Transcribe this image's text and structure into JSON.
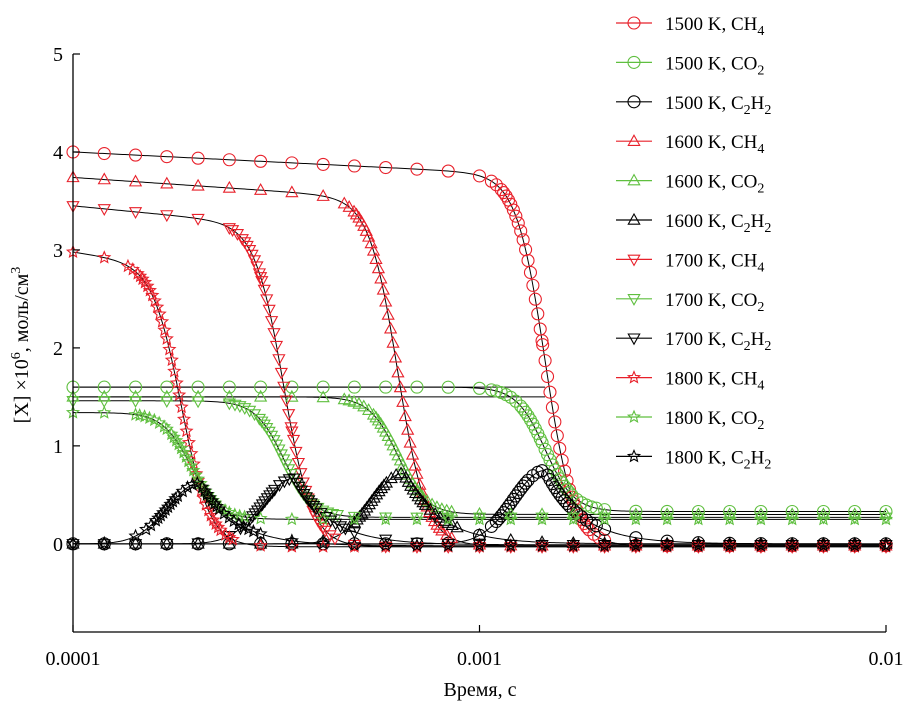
{
  "chart_data": {
    "type": "line",
    "title": "",
    "xlabel": "Время, с",
    "ylabel": "[X] ×10^6, моль/см^3",
    "xscale": "log",
    "xlim": [
      0.0001,
      0.01
    ],
    "ylim": [
      -0.9,
      5
    ],
    "grid": false,
    "legend_position": "top-right",
    "x_ticks": [
      0.0001,
      0.001,
      0.01
    ],
    "x_tick_labels": [
      "0.0001",
      "0.001",
      "0.01"
    ],
    "y_ticks": [
      0,
      1,
      2,
      3,
      4,
      5
    ],
    "y_tick_labels": [
      "0",
      "1",
      "2",
      "3",
      "4",
      "5"
    ],
    "colors": {
      "1500": "#e8202a",
      "co2": "#5fbf3f",
      "c2h2": "#000000"
    },
    "series": [
      {
        "name": "1500 K, CH4",
        "name_base": "1500 K, CH",
        "name_sub": "4",
        "color": "#e8202a",
        "marker": "circle",
        "fall_time": 0.00145,
        "y_start": 4.0,
        "y_end": -0.02
      },
      {
        "name": "1500 K, CO2",
        "name_base": "1500 K, CO",
        "name_sub": "2",
        "color": "#5fbf3f",
        "marker": "circle",
        "fall_time": 0.00145,
        "y_start": 1.6,
        "y_end": 0.33
      },
      {
        "name": "1500 K, C2H2",
        "name_base": "1500 K, C",
        "name_sub": "2",
        "name_mid": "H",
        "name_sub2": "2",
        "color": "#000000",
        "marker": "circle",
        "peak_time": 0.00145,
        "y_start": 1.58,
        "y_peak": 0.75,
        "y_end": 0.0
      },
      {
        "name": "1600 K, CH4",
        "name_base": "1600 K, CH",
        "name_sub": "4",
        "color": "#e8202a",
        "marker": "triangle-up",
        "fall_time": 0.00063,
        "y_start": 3.74,
        "y_end": -0.02
      },
      {
        "name": "1600 K, CO2",
        "name_base": "1600 K, CO",
        "name_sub": "2",
        "color": "#5fbf3f",
        "marker": "triangle-up",
        "fall_time": 0.00063,
        "y_start": 1.5,
        "y_end": 0.3
      },
      {
        "name": "1600 K, C2H2",
        "name_base": "1600 K, C",
        "name_sub": "2",
        "name_mid": "H",
        "name_sub2": "2",
        "color": "#000000",
        "marker": "triangle-up",
        "peak_time": 0.00065,
        "y_start": 1.5,
        "y_peak": 0.72,
        "y_end": 0.0
      },
      {
        "name": "1700 K, CH4",
        "name_base": "1700 K, CH",
        "name_sub": "4",
        "color": "#e8202a",
        "marker": "triangle-down",
        "fall_time": 0.00033,
        "y_start": 3.45,
        "y_end": -0.03
      },
      {
        "name": "1700 K, CO2",
        "name_base": "1700 K, CO",
        "name_sub": "2",
        "color": "#5fbf3f",
        "marker": "triangle-down",
        "fall_time": 0.00033,
        "y_start": 1.46,
        "y_end": 0.27
      },
      {
        "name": "1700 K, C2H2",
        "name_base": "1700 K, C",
        "name_sub": "2",
        "name_mid": "H",
        "name_sub2": "2",
        "color": "#000000",
        "marker": "triangle-down",
        "peak_time": 0.00035,
        "y_start": 1.45,
        "y_peak": 0.67,
        "y_end": -0.01
      },
      {
        "name": "1800 K, CH4",
        "name_base": "1800 K, CH",
        "name_sub": "4",
        "color": "#e8202a",
        "marker": "star",
        "fall_time": 0.000185,
        "y_start": 2.98,
        "y_end": -0.03
      },
      {
        "name": "1800 K, CO2",
        "name_base": "1800 K, CO",
        "name_sub": "2",
        "color": "#5fbf3f",
        "marker": "star",
        "fall_time": 0.000195,
        "y_start": 1.34,
        "y_end": 0.25
      },
      {
        "name": "1800 K, C2H2",
        "name_base": "1800 K, C",
        "name_sub": "2",
        "name_mid": "H",
        "name_sub2": "2",
        "color": "#000000",
        "marker": "star",
        "peak_time": 0.000205,
        "y_start": 1.33,
        "y_peak": 0.62,
        "y_end": -0.02
      }
    ]
  }
}
